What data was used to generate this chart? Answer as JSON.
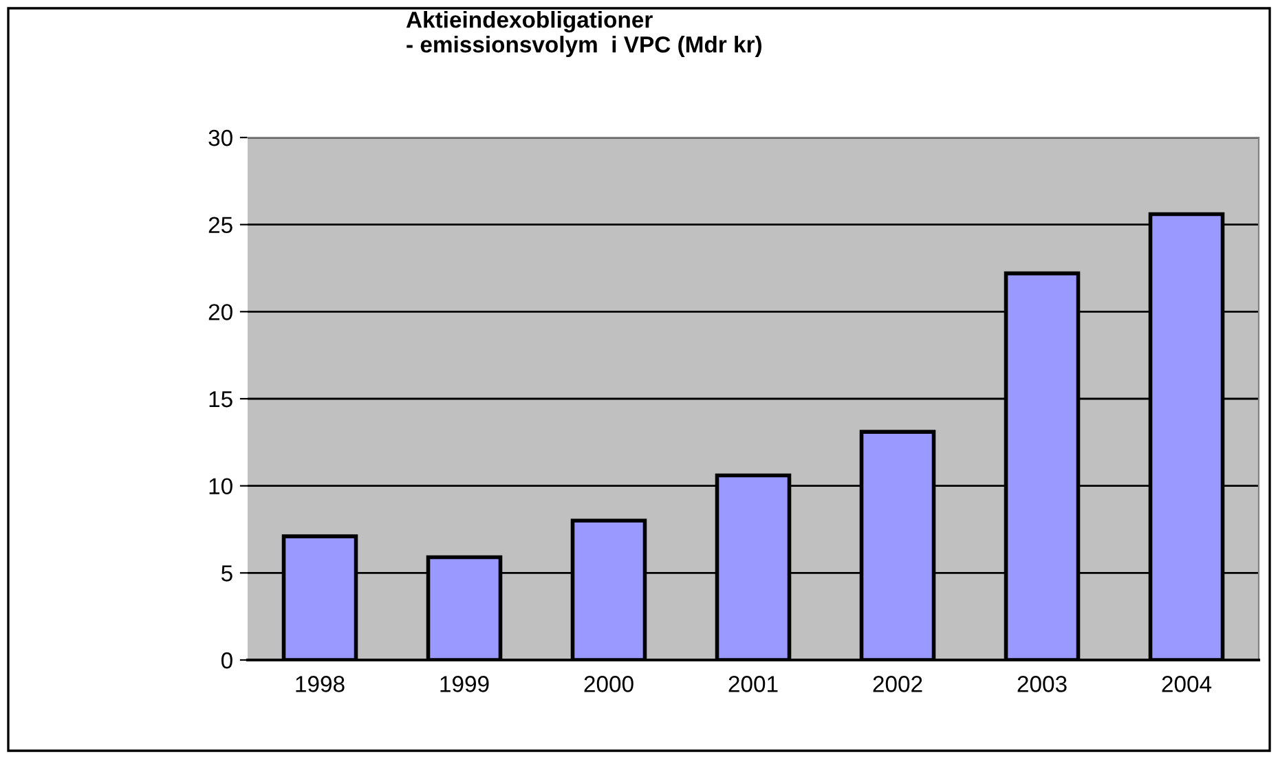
{
  "chart_data": {
    "type": "bar",
    "title": "Aktieindexobligationer\n- emissionsvolym  i VPC (Mdr kr)",
    "categories": [
      "1998",
      "1999",
      "2000",
      "2001",
      "2002",
      "2003",
      "2004"
    ],
    "values": [
      7.1,
      5.9,
      8.0,
      10.6,
      13.1,
      22.2,
      25.6
    ],
    "color": "#9999ff",
    "ylim": [
      0,
      30
    ],
    "yticks": [
      0,
      5,
      10,
      15,
      20,
      25,
      30
    ],
    "grid": "y",
    "legend": false
  }
}
